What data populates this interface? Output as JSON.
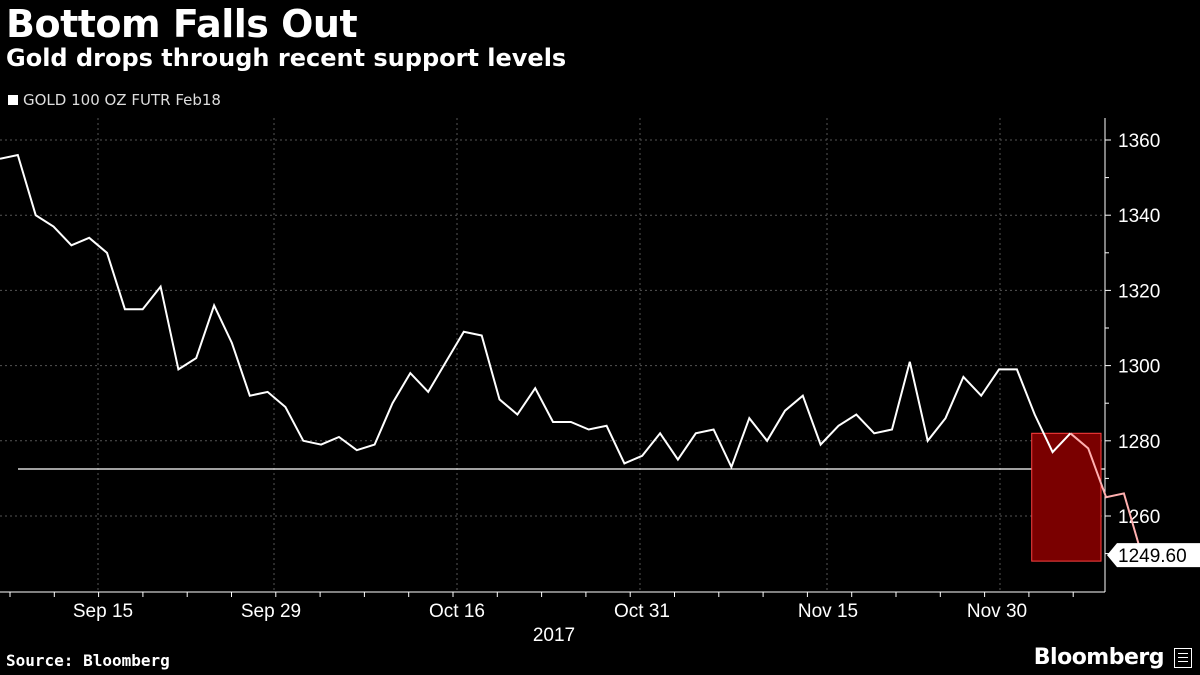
{
  "header": {
    "title": "Bottom Falls Out",
    "subtitle": "Gold drops through recent support levels"
  },
  "footer": {
    "source": "Source: Bloomberg",
    "brand": "Bloomberg"
  },
  "colors": {
    "background": "#000000",
    "line": "#ffffff",
    "highlight_fill": "#7a0000",
    "highlight_stroke": "#ff4040",
    "highlight_line": "#ffb0b0"
  },
  "chart_data": {
    "type": "line",
    "title": "Bottom Falls Out",
    "subtitle": "Gold drops through recent support levels",
    "xlabel": "2017",
    "ylabel": "",
    "legend": {
      "position": "top-left",
      "entries": [
        "GOLD 100 OZ FUTR Feb18"
      ]
    },
    "ylim": [
      1242,
      1366
    ],
    "yticks": [
      1260,
      1280,
      1300,
      1320,
      1340,
      1360
    ],
    "xtick_labels": [
      "Sep 15",
      "Sep 29",
      "Oct 16",
      "Oct 31",
      "Nov 15",
      "Nov 30"
    ],
    "xtick_indices": [
      7,
      17,
      27,
      37,
      47,
      57
    ],
    "grid": true,
    "support_level": 1272.5,
    "last_value_label": "1249.60",
    "highlight_range": {
      "from_index": 58,
      "to_index": 63,
      "y_from": 1248,
      "y_to": 1282
    },
    "series": [
      {
        "name": "GOLD 100 OZ FUTR Feb18",
        "values": [
          1355,
          1356,
          1340,
          1337,
          1332,
          1334,
          1330,
          1315,
          1315,
          1321,
          1299,
          1302,
          1316,
          1306,
          1292,
          1293,
          1289,
          1280,
          1279,
          1281,
          1277.5,
          1279,
          1290,
          1298,
          1293,
          1301,
          1309,
          1308,
          1291,
          1287,
          1294,
          1285,
          1285,
          1283,
          1284,
          1274,
          1276,
          1282,
          1275,
          1282,
          1283,
          1273,
          1286,
          1280,
          1288,
          1292,
          1279,
          1284,
          1287,
          1282,
          1283,
          1301,
          1280,
          1286,
          1297,
          1292,
          1299,
          1299,
          1287,
          1277,
          1282,
          1278,
          1265,
          1266,
          1249.6
        ]
      }
    ]
  }
}
